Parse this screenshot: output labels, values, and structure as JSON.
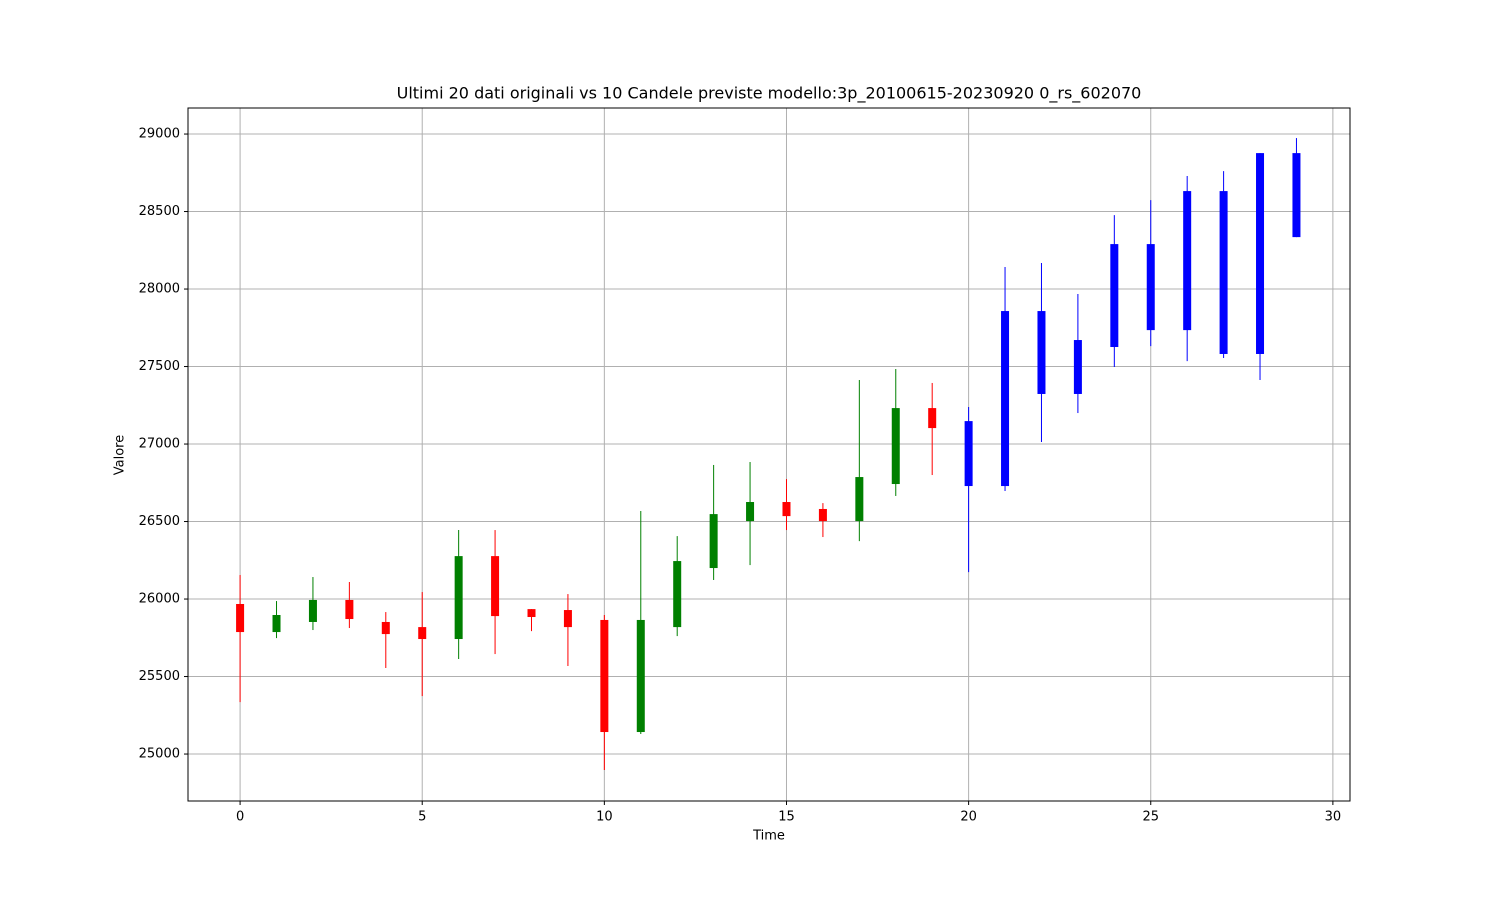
{
  "chart_data": {
    "type": "candlestick",
    "title": "Ultimi 20 dati originali vs 10 Candele previste modello:3p_20100615-20230920 0_rs_602070",
    "x_label": "Time",
    "y_label": "Valore",
    "xlim": [
      -1.43,
      30.47
    ],
    "ylim": [
      24697,
      29168
    ],
    "xticks": [
      0,
      5,
      10,
      15,
      20,
      25,
      30
    ],
    "yticks": [
      25000,
      25500,
      26000,
      26500,
      27000,
      27500,
      28000,
      28500,
      29000
    ],
    "grid": true,
    "series": [
      {
        "up_color": "#008000",
        "down_color": "#ff0000",
        "x": [
          0,
          1,
          2,
          3,
          4,
          5,
          6,
          7,
          8,
          9,
          10,
          11,
          12,
          13,
          14,
          15,
          16,
          17,
          18,
          19
        ],
        "open": [
          25968,
          25787,
          25852,
          25994,
          25852,
          25819,
          25742,
          26277,
          25935,
          25929,
          25865,
          25142,
          25819,
          26200,
          26503,
          26626,
          26581,
          26503,
          26742,
          27232
        ],
        "high": [
          26155,
          25987,
          26142,
          26110,
          25916,
          26045,
          26445,
          26445,
          25935,
          26032,
          25897,
          26568,
          26406,
          26865,
          26884,
          26774,
          26619,
          27413,
          27484,
          27394
        ],
        "low": [
          25335,
          25748,
          25800,
          25813,
          25555,
          25374,
          25613,
          25645,
          25793,
          25568,
          24897,
          25129,
          25761,
          26123,
          26219,
          26445,
          26400,
          26374,
          26665,
          26800
        ],
        "close": [
          25787,
          25897,
          25994,
          25871,
          25774,
          25742,
          26277,
          25890,
          25884,
          25819,
          25142,
          25865,
          26245,
          26548,
          26626,
          26535,
          26503,
          26787,
          27232,
          27103
        ]
      },
      {
        "color": "#0000ff",
        "x": [
          20,
          21,
          22,
          23,
          24,
          25,
          26,
          27,
          28,
          29
        ],
        "open": [
          26729,
          26729,
          27323,
          27323,
          27626,
          27735,
          27735,
          27581,
          27581,
          28335
        ],
        "high": [
          27239,
          28142,
          28168,
          27968,
          28477,
          28574,
          28729,
          28761,
          28877,
          28974
        ],
        "low": [
          26174,
          26697,
          27013,
          27200,
          27497,
          27632,
          27535,
          27555,
          27413,
          28335
        ],
        "close": [
          27148,
          27858,
          27858,
          27671,
          28290,
          28290,
          28632,
          28632,
          28877,
          28877
        ]
      }
    ]
  }
}
